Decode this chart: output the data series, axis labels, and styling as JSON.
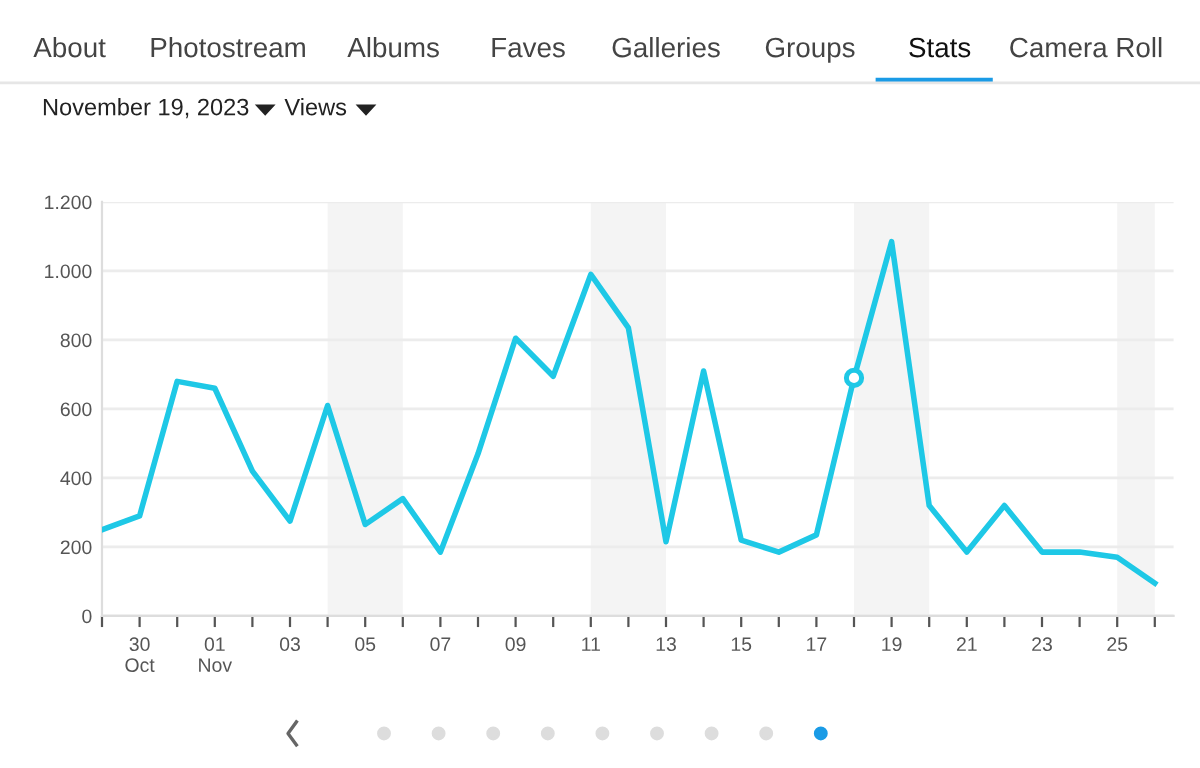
{
  "chart_data": {
    "type": "line",
    "title": "November 19, 2023",
    "subtitle": "Views",
    "annotations": [
      "About",
      "Photostream",
      "Albums",
      "Faves",
      "Galleries",
      "Groups",
      "Stats",
      "Camera Roll"
    ],
    "x": [
      "2023-10-29",
      "2023-10-30",
      "2023-10-31",
      "2023-11-01",
      "2023-11-02",
      "2023-11-03",
      "2023-11-04",
      "2023-11-05",
      "2023-11-06",
      "2023-11-07",
      "2023-11-08",
      "2023-11-09",
      "2023-11-10",
      "2023-11-11",
      "2023-11-12",
      "2023-11-13",
      "2023-11-14",
      "2023-11-15",
      "2023-11-16",
      "2023-11-17",
      "2023-11-18",
      "2023-11-19",
      "2023-11-20",
      "2023-11-21",
      "2023-11-22",
      "2023-11-23",
      "2023-11-24",
      "2023-11-25",
      "2023-11-26"
    ],
    "series": [
      {
        "color": "#1ec8e6",
        "values": [
          250,
          290,
          680,
          660,
          420,
          275,
          610,
          265,
          340,
          185,
          470,
          805,
          695,
          990,
          835,
          215,
          710,
          220,
          185,
          235,
          690,
          1085,
          320,
          185,
          320,
          185,
          185,
          170,
          95
        ]
      },
      {
        "type": "scatter",
        "marker": "circle",
        "color": "#1ec8e6",
        "x": [
          "2023-11-18"
        ],
        "values": [
          690
        ]
      }
    ],
    "bands": [
      {
        "axis": "x",
        "from": "2023-11-04",
        "to": "2023-11-06",
        "color": "#f4f4f4"
      },
      {
        "axis": "x",
        "from": "2023-11-11",
        "to": "2023-11-13",
        "color": "#f4f4f4"
      },
      {
        "axis": "x",
        "from": "2023-11-18",
        "to": "2023-11-20",
        "color": "#f4f4f4"
      },
      {
        "axis": "x",
        "from": "2023-11-25",
        "to": "2023-11-26",
        "color": "#f4f4f4"
      }
    ],
    "xlim": [
      "2023-10-29",
      "2023-11-26T12:00"
    ],
    "xticks": [
      {
        "value": "2023-10-29",
        "label": null
      },
      {
        "value": "2023-10-30",
        "label": "30\nOct"
      },
      {
        "value": "2023-10-31",
        "label": null
      },
      {
        "value": "2023-11-01",
        "label": "01\nNov"
      },
      {
        "value": "2023-11-02",
        "label": null
      },
      {
        "value": "2023-11-03",
        "label": "03"
      },
      {
        "value": "2023-11-04",
        "label": null
      },
      {
        "value": "2023-11-05",
        "label": "05"
      },
      {
        "value": "2023-11-06",
        "label": null
      },
      {
        "value": "2023-11-07",
        "label": "07"
      },
      {
        "value": "2023-11-08",
        "label": null
      },
      {
        "value": "2023-11-09",
        "label": "09"
      },
      {
        "value": "2023-11-10",
        "label": null
      },
      {
        "value": "2023-11-11",
        "label": "11"
      },
      {
        "value": "2023-11-12",
        "label": null
      },
      {
        "value": "2023-11-13",
        "label": "13"
      },
      {
        "value": "2023-11-14",
        "label": null
      },
      {
        "value": "2023-11-15",
        "label": "15"
      },
      {
        "value": "2023-11-16",
        "label": null
      },
      {
        "value": "2023-11-17",
        "label": "17"
      },
      {
        "value": "2023-11-18",
        "label": null
      },
      {
        "value": "2023-11-19",
        "label": "19"
      },
      {
        "value": "2023-11-20",
        "label": null
      },
      {
        "value": "2023-11-21",
        "label": "21"
      },
      {
        "value": "2023-11-22",
        "label": null
      },
      {
        "value": "2023-11-23",
        "label": "23"
      },
      {
        "value": "2023-11-24",
        "label": null
      },
      {
        "value": "2023-11-25",
        "label": "25"
      },
      {
        "value": "2023-11-26",
        "label": null
      }
    ],
    "ylim": [
      0,
      1200
    ],
    "yticks": [
      0,
      200,
      400,
      600,
      800,
      {
        "value": 1000,
        "label": "1.000"
      },
      {
        "value": 1200,
        "label": "1.200"
      }
    ],
    "grid": "y",
    "marker": "none",
    "line_style": "solid"
  }
}
